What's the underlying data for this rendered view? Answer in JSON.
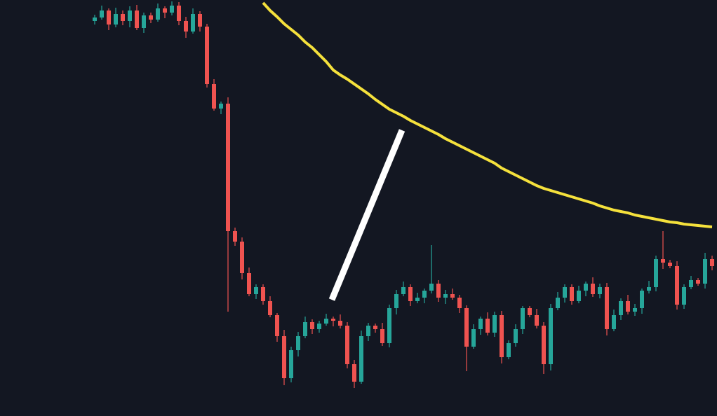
{
  "chart_data": {
    "type": "candlestick",
    "ylim": [
      0,
      594
    ],
    "up_color": "#26a69a",
    "down_color": "#ef5350",
    "ma_color": "#f5e13c",
    "open": [
      564,
      569,
      579,
      559,
      574,
      564,
      579,
      554,
      572,
      566,
      582,
      576,
      586,
      564,
      549,
      574,
      556,
      474,
      439,
      446,
      264,
      249,
      204,
      174,
      184,
      164,
      144,
      114,
      54,
      94,
      114,
      134,
      124,
      132,
      139,
      136,
      129,
      74,
      49,
      114,
      129,
      124,
      104,
      154,
      174,
      184,
      164,
      169,
      179,
      189,
      169,
      174,
      169,
      154,
      99,
      124,
      139,
      119,
      144,
      84,
      104,
      124,
      154,
      144,
      129,
      74,
      154,
      169,
      184,
      164,
      179,
      189,
      174,
      184,
      124,
      144,
      164,
      149,
      154,
      179,
      184,
      224,
      219,
      214,
      159,
      184,
      194,
      189,
      224
    ],
    "high": [
      573,
      586,
      582,
      583,
      579,
      585,
      587,
      576,
      576,
      589,
      585,
      592,
      591,
      570,
      582,
      578,
      560,
      481,
      449,
      455,
      269,
      255,
      212,
      188,
      188,
      171,
      147,
      123,
      99,
      120,
      142,
      138,
      136,
      146,
      142,
      145,
      134,
      80,
      122,
      133,
      132,
      133,
      159,
      180,
      192,
      188,
      176,
      182,
      244,
      194,
      180,
      182,
      173,
      158,
      131,
      142,
      148,
      149,
      150,
      108,
      131,
      157,
      157,
      153,
      134,
      160,
      177,
      188,
      188,
      186,
      192,
      198,
      189,
      190,
      152,
      168,
      173,
      160,
      182,
      193,
      229,
      264,
      223,
      221,
      188,
      200,
      197,
      233,
      229
    ],
    "low": [
      559,
      566,
      551,
      555,
      558,
      555,
      551,
      547,
      561,
      563,
      568,
      572,
      558,
      540,
      546,
      549,
      469,
      436,
      431,
      149,
      243,
      195,
      171,
      167,
      159,
      141,
      106,
      44,
      48,
      85,
      111,
      117,
      119,
      129,
      128,
      125,
      68,
      40,
      46,
      107,
      119,
      100,
      98,
      145,
      171,
      157,
      161,
      161,
      175,
      163,
      160,
      166,
      147,
      64,
      96,
      116,
      115,
      113,
      75,
      81,
      99,
      117,
      141,
      125,
      60,
      65,
      151,
      162,
      159,
      161,
      171,
      170,
      168,
      115,
      121,
      137,
      145,
      143,
      146,
      175,
      178,
      210,
      211,
      152,
      153,
      181,
      186,
      182,
      208
    ],
    "close": [
      569,
      579,
      559,
      574,
      564,
      579,
      554,
      572,
      566,
      582,
      576,
      586,
      564,
      549,
      574,
      556,
      474,
      439,
      446,
      264,
      249,
      204,
      174,
      184,
      164,
      144,
      114,
      54,
      94,
      114,
      134,
      124,
      132,
      139,
      136,
      129,
      74,
      49,
      114,
      129,
      124,
      104,
      154,
      174,
      184,
      164,
      169,
      179,
      189,
      169,
      174,
      169,
      154,
      99,
      124,
      139,
      119,
      144,
      84,
      104,
      124,
      154,
      144,
      129,
      74,
      154,
      169,
      184,
      164,
      179,
      189,
      174,
      184,
      124,
      144,
      164,
      149,
      154,
      179,
      184,
      224,
      219,
      214,
      159,
      184,
      194,
      189,
      224,
      214
    ],
    "ma": [
      null,
      null,
      null,
      null,
      null,
      null,
      null,
      null,
      null,
      null,
      null,
      null,
      null,
      null,
      null,
      null,
      null,
      null,
      null,
      null,
      null,
      null,
      null,
      null,
      590,
      579,
      570,
      560,
      552,
      544,
      534,
      526,
      516,
      506,
      494,
      487,
      481,
      474,
      467,
      460,
      452,
      445,
      438,
      433,
      428,
      422,
      417,
      412,
      407,
      402,
      396,
      391,
      386,
      381,
      376,
      371,
      366,
      361,
      354,
      349,
      344,
      339,
      334,
      329,
      325,
      322,
      319,
      316,
      313,
      310,
      307,
      304,
      300,
      297,
      294,
      292,
      290,
      287,
      285,
      283,
      281,
      279,
      277,
      276,
      274,
      273,
      272,
      271,
      270
    ]
  }
}
